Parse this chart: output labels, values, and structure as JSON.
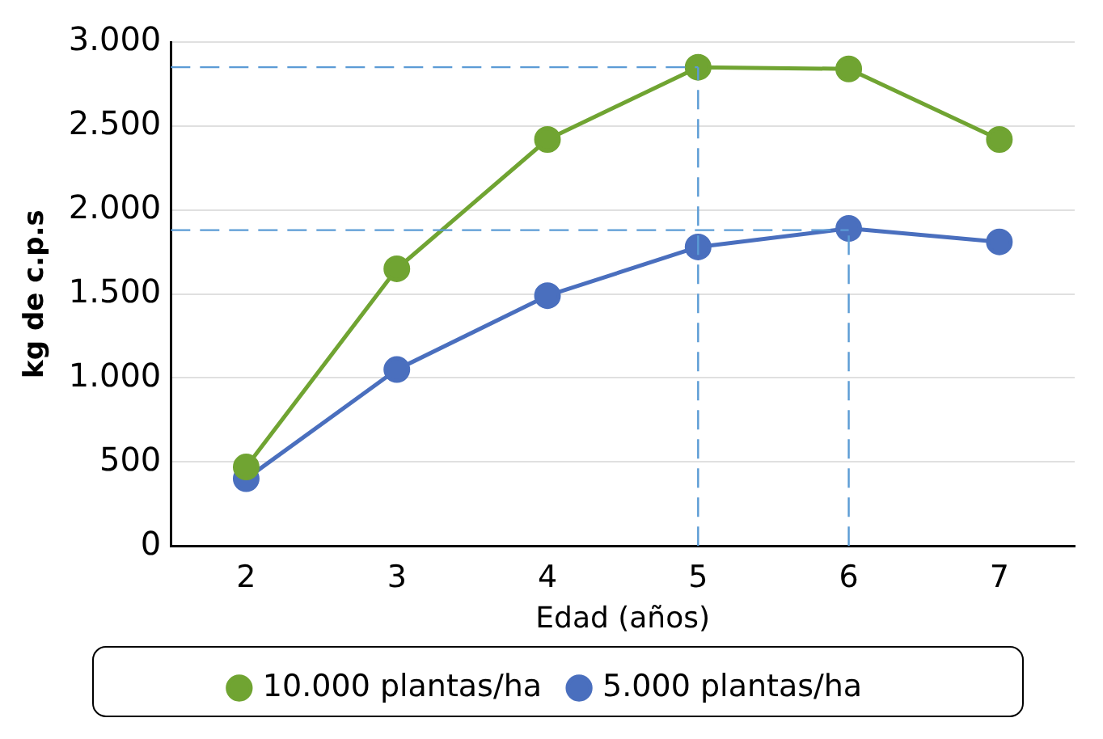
{
  "chart_data": {
    "type": "line",
    "xlabel": "Edad (años)",
    "ylabel": "kg de c.p.s",
    "categories": [
      "2",
      "3",
      "4",
      "5",
      "6",
      "7"
    ],
    "series": [
      {
        "name": "10.000 plantas/ha",
        "color": "#70a432",
        "values": [
          470,
          1650,
          2420,
          2850,
          2840,
          2420
        ]
      },
      {
        "name": "5.000 plantas/ha",
        "color": "#4a6fbe",
        "values": [
          400,
          1050,
          1490,
          1780,
          1890,
          1810
        ]
      }
    ],
    "ylim": [
      0,
      3000
    ],
    "yticks": [
      {
        "value": 0,
        "label": "0"
      },
      {
        "value": 500,
        "label": "500"
      },
      {
        "value": 1000,
        "label": "1.000"
      },
      {
        "value": 1500,
        "label": "1.500"
      },
      {
        "value": 2000,
        "label": "2.000"
      },
      {
        "value": 2500,
        "label": "2.500"
      },
      {
        "value": 3000,
        "label": "3.000"
      }
    ],
    "grid": "y",
    "legend": "bottom",
    "marker": "circle",
    "line_style": "solid",
    "ref_lines": [
      {
        "axis": "y",
        "value": 2850,
        "color": "#5b9bd5",
        "line_style": "dashed"
      },
      {
        "axis": "x",
        "value": "5",
        "color": "#5b9bd5",
        "line_style": "dashed"
      },
      {
        "axis": "y",
        "value": 1880,
        "color": "#5b9bd5",
        "line_style": "dashed"
      },
      {
        "axis": "x",
        "value": "6",
        "color": "#5b9bd5",
        "line_style": "dashed"
      }
    ]
  }
}
